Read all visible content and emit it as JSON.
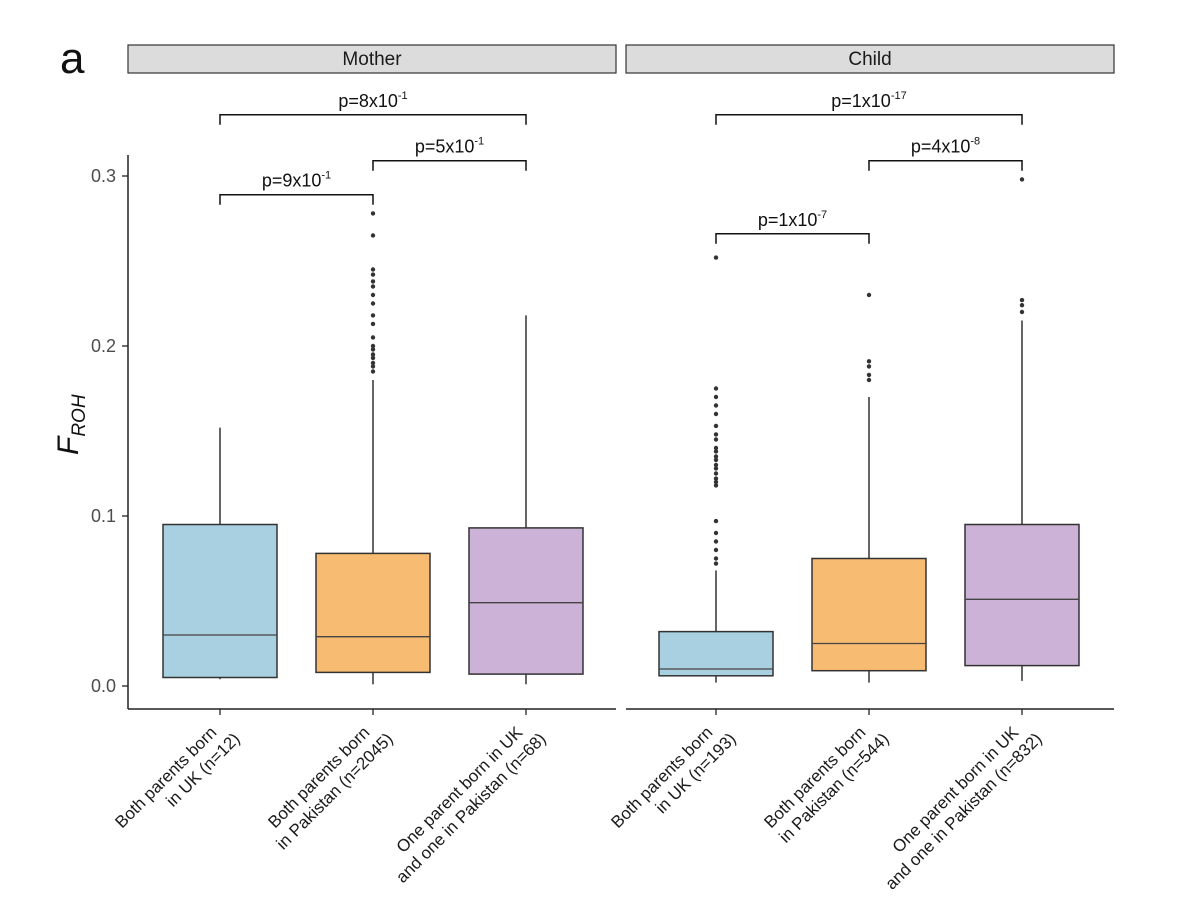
{
  "panel_label": "a",
  "chart_data": {
    "type": "box",
    "ylabel": "F",
    "ylabel_subscript": "ROH",
    "ylim": [
      -0.014,
      0.31
    ],
    "yticks": [
      0.0,
      0.1,
      0.2,
      0.3
    ],
    "ytick_labels": [
      "0.0",
      "0.1",
      "0.2",
      "0.3"
    ],
    "colors": {
      "uk": "#a8d0e0",
      "pakistan": "#f8bb72",
      "mixed": "#cbb2d6",
      "outline": "#333333",
      "strip": "#dcdcdc"
    },
    "panels": [
      {
        "strip": "Mother",
        "groups": [
          {
            "label_lines": [
              "Both parents born",
              "in UK (n=12)"
            ],
            "color": "uk",
            "q1": 0.005,
            "median": 0.03,
            "q3": 0.095,
            "whisker_low": 0.004,
            "whisker_high": 0.152,
            "outliers": []
          },
          {
            "label_lines": [
              "Both parents born",
              "in Pakistan (n=2045)"
            ],
            "color": "pakistan",
            "q1": 0.008,
            "median": 0.029,
            "q3": 0.078,
            "whisker_low": 0.001,
            "whisker_high": 0.18,
            "outliers": [
              0.185,
              0.188,
              0.19,
              0.193,
              0.195,
              0.198,
              0.2,
              0.205,
              0.213,
              0.218,
              0.225,
              0.23,
              0.235,
              0.238,
              0.242,
              0.245,
              0.265,
              0.278
            ]
          },
          {
            "label_lines": [
              "One parent born in UK",
              "and one in Pakistan (n=68)"
            ],
            "color": "mixed",
            "q1": 0.007,
            "median": 0.049,
            "q3": 0.093,
            "whisker_low": 0.001,
            "whisker_high": 0.218,
            "outliers": []
          }
        ],
        "comparisons": [
          {
            "from": 0,
            "to": 1,
            "p_base": "p=9x10",
            "p_exp": "-1",
            "level": 0.289
          },
          {
            "from": 1,
            "to": 2,
            "p_base": "p=5x10",
            "p_exp": "-1",
            "level": 0.309
          },
          {
            "from": 0,
            "to": 2,
            "p_base": "p=8x10",
            "p_exp": "-1",
            "level": 0.336
          }
        ]
      },
      {
        "strip": "Child",
        "groups": [
          {
            "label_lines": [
              "Both parents born",
              "in UK (n=193)"
            ],
            "color": "uk",
            "q1": 0.006,
            "median": 0.01,
            "q3": 0.032,
            "whisker_low": 0.002,
            "whisker_high": 0.068,
            "outliers": [
              0.072,
              0.075,
              0.08,
              0.085,
              0.09,
              0.097,
              0.118,
              0.12,
              0.122,
              0.125,
              0.128,
              0.13,
              0.133,
              0.135,
              0.138,
              0.14,
              0.145,
              0.148,
              0.153,
              0.16,
              0.165,
              0.17,
              0.175,
              0.252
            ]
          },
          {
            "label_lines": [
              "Both parents born",
              "in Pakistan (n=544)"
            ],
            "color": "pakistan",
            "q1": 0.009,
            "median": 0.025,
            "q3": 0.075,
            "whisker_low": 0.002,
            "whisker_high": 0.17,
            "outliers": [
              0.18,
              0.183,
              0.188,
              0.191,
              0.23
            ]
          },
          {
            "label_lines": [
              "One parent born in UK",
              "and one in Pakistan (n=832)"
            ],
            "color": "mixed",
            "q1": 0.012,
            "median": 0.051,
            "q3": 0.095,
            "whisker_low": 0.003,
            "whisker_high": 0.215,
            "outliers": [
              0.22,
              0.224,
              0.227,
              0.298
            ]
          }
        ],
        "comparisons": [
          {
            "from": 0,
            "to": 1,
            "p_base": "p=1x10",
            "p_exp": "-7",
            "level": 0.266
          },
          {
            "from": 1,
            "to": 2,
            "p_base": "p=4x10",
            "p_exp": "-8",
            "level": 0.309
          },
          {
            "from": 0,
            "to": 2,
            "p_base": "p=1x10",
            "p_exp": "-17",
            "level": 0.336
          }
        ]
      }
    ]
  }
}
